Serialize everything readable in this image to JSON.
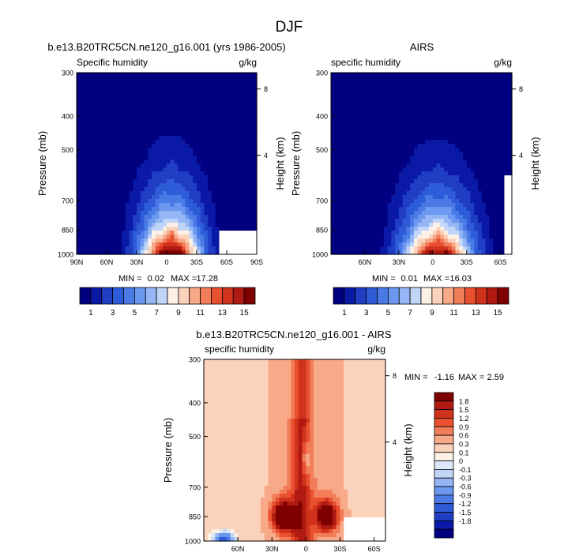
{
  "figure_title": "DJF",
  "chart_data": [
    {
      "type": "heatmap",
      "id": "model",
      "title": "b.e13.B20TRC5CN.ne120_g16.001 (yrs 1986-2005)",
      "left_label": "Specific humidity",
      "right_label": "g/kg",
      "ylabel": "Pressure (mb)",
      "y2label": "Height (km)",
      "x_ticks": [
        "90N",
        "60N",
        "30N",
        "0",
        "30S",
        "60S",
        "90S"
      ],
      "y_ticks": [
        "300",
        "400",
        "500",
        "700",
        "850",
        "1000"
      ],
      "y2_ticks": [
        "8",
        "4"
      ],
      "stats": {
        "min_label": "MIN =",
        "min": "0.02",
        "max_label": "MAX =",
        "max": "17.28"
      },
      "peak": 17.28
    },
    {
      "type": "heatmap",
      "id": "obs",
      "title": "AIRS",
      "left_label": "specific humidity",
      "right_label": "g/kg",
      "ylabel": "Pressure (mb)",
      "y2label": "Height (km)",
      "x_ticks": [
        "60N",
        "30N",
        "0",
        "30S",
        "60S"
      ],
      "y_ticks": [
        "300",
        "400",
        "500",
        "700",
        "850",
        "1000"
      ],
      "y2_ticks": [
        "8",
        "4"
      ],
      "stats": {
        "min_label": "MIN =",
        "min": "0.01",
        "max_label": "MAX =",
        "max": "16.03"
      },
      "peak": 16.03
    },
    {
      "type": "heatmap",
      "id": "diff",
      "title": "b.e13.B20TRC5CN.ne120_g16.001 - AIRS",
      "left_label": "specific humidity",
      "right_label": "g/kg",
      "ylabel": "Pressure (mb)",
      "y2label": "Height (km)",
      "x_ticks": [
        "60N",
        "30N",
        "0",
        "30S",
        "60S"
      ],
      "y_ticks": [
        "300",
        "400",
        "500",
        "700",
        "850",
        "1000"
      ],
      "y2_ticks": [
        "8",
        "4"
      ],
      "stats": {
        "min_label": "MIN =",
        "min": "-1.16",
        "max_label": "MAX =",
        "max": "2.59"
      }
    }
  ],
  "colorbar_main": {
    "colors": [
      "#000080",
      "#0a19a6",
      "#1f3ec4",
      "#2e5cd9",
      "#4a7ae6",
      "#6c98ef",
      "#94b6f5",
      "#c0d5f8",
      "#fdf1e6",
      "#fbd2bc",
      "#f8a988",
      "#f27d59",
      "#e9502f",
      "#d0321b",
      "#b01a12",
      "#7f0000"
    ],
    "labels": [
      "1",
      "3",
      "5",
      "7",
      "9",
      "11",
      "13",
      "15"
    ]
  },
  "colorbar_diff": {
    "colors": [
      "#7f0000",
      "#b01a12",
      "#d0321b",
      "#e9502f",
      "#f27d59",
      "#f8a988",
      "#fbd2bc",
      "#fdf1e6",
      "#dde9f8",
      "#c0d5f8",
      "#94b6f5",
      "#6c98ef",
      "#4a7ae6",
      "#2e5cd9",
      "#1f3ec4",
      "#0a19a6",
      "#000080"
    ],
    "labels": [
      "1.8",
      "1.5",
      "1.2",
      "0.9",
      "0.6",
      "0.3",
      "0.1",
      "0",
      "-0.1",
      "-0.3",
      "-0.6",
      "-0.9",
      "-1.2",
      "-1.5",
      "-1.8"
    ]
  }
}
